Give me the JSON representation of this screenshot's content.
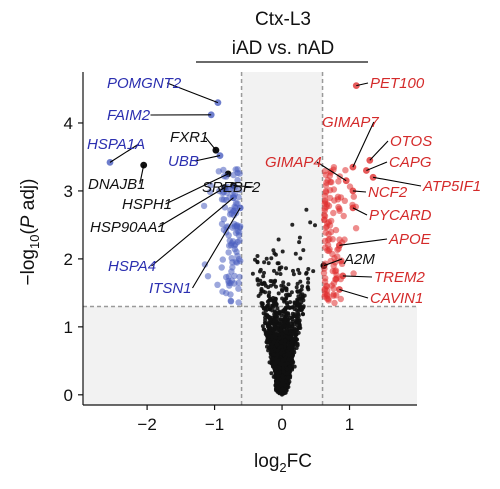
{
  "chart_data": {
    "type": "scatter",
    "title": "Ctx-L3",
    "subtitle": "iAD vs. nAD",
    "xlabel_main": "log",
    "xlabel_sub": "2",
    "xlabel_tail": "FC",
    "ylabel_prefix": "−log",
    "ylabel_sub": "10",
    "ylabel_paren_open": "(",
    "ylabel_italic": "P",
    "ylabel_tail": " adj)",
    "xlim": [
      -2.95,
      2.0
    ],
    "ylim": [
      -0.15,
      4.75
    ],
    "xticks": [
      -2,
      -1,
      0,
      1
    ],
    "yticks": [
      0,
      1,
      2,
      3,
      4
    ],
    "grid": false,
    "thresholds": {
      "fc": 0.6,
      "padj": 1.3
    },
    "colors": {
      "up": "#e03030",
      "down": "#4a5ec0",
      "ns": "#111111",
      "label_up": "#d42a2a",
      "label_down": "#2b2fb0",
      "label_ns": "#111111",
      "shade": "#f2f2f2",
      "threshold_line": "#9a9a9a"
    },
    "labeled_points": [
      {
        "gene": "POMGNT2",
        "x": -0.95,
        "y": 4.3,
        "group": "down"
      },
      {
        "gene": "FAIM2",
        "x": -1.05,
        "y": 4.12,
        "group": "down"
      },
      {
        "gene": "HSPA1A",
        "x": -2.55,
        "y": 3.42,
        "group": "down"
      },
      {
        "gene": "UBB",
        "x": -0.92,
        "y": 3.52,
        "group": "down"
      },
      {
        "gene": "HSPA4",
        "x": -0.72,
        "y": 2.9,
        "group": "down"
      },
      {
        "gene": "ITSN1",
        "x": -0.62,
        "y": 2.75,
        "group": "down"
      },
      {
        "gene": "FXR1",
        "x": -0.98,
        "y": 3.6,
        "group": "ns"
      },
      {
        "gene": "DNAJB1",
        "x": -2.05,
        "y": 3.38,
        "group": "ns"
      },
      {
        "gene": "HSPH1",
        "x": -0.8,
        "y": 3.25,
        "group": "ns"
      },
      {
        "gene": "SREBF2",
        "x": -0.72,
        "y": 3.08,
        "group": "ns"
      },
      {
        "gene": "HSP90AA1",
        "x": -0.85,
        "y": 3.05,
        "group": "ns"
      },
      {
        "gene": "A2M",
        "x": 0.62,
        "y": 1.9,
        "group": "ns"
      },
      {
        "gene": "PET100",
        "x": 1.1,
        "y": 4.55,
        "group": "up"
      },
      {
        "gene": "GIMAP7",
        "x": 1.05,
        "y": 3.35,
        "group": "up"
      },
      {
        "gene": "OTOS",
        "x": 1.3,
        "y": 3.45,
        "group": "up"
      },
      {
        "gene": "CAPG",
        "x": 1.25,
        "y": 3.3,
        "group": "up"
      },
      {
        "gene": "GIMAP4",
        "x": 0.95,
        "y": 3.15,
        "group": "up"
      },
      {
        "gene": "ATP5IF1",
        "x": 1.35,
        "y": 3.2,
        "group": "up"
      },
      {
        "gene": "NCF2",
        "x": 1.05,
        "y": 3.0,
        "group": "up"
      },
      {
        "gene": "PYCARD",
        "x": 1.05,
        "y": 2.75,
        "group": "up"
      },
      {
        "gene": "APOE",
        "x": 0.85,
        "y": 2.2,
        "group": "up"
      },
      {
        "gene": "TREM2",
        "x": 0.9,
        "y": 1.75,
        "group": "up"
      },
      {
        "gene": "CAVIN1",
        "x": 0.85,
        "y": 1.55,
        "group": "up"
      }
    ]
  }
}
